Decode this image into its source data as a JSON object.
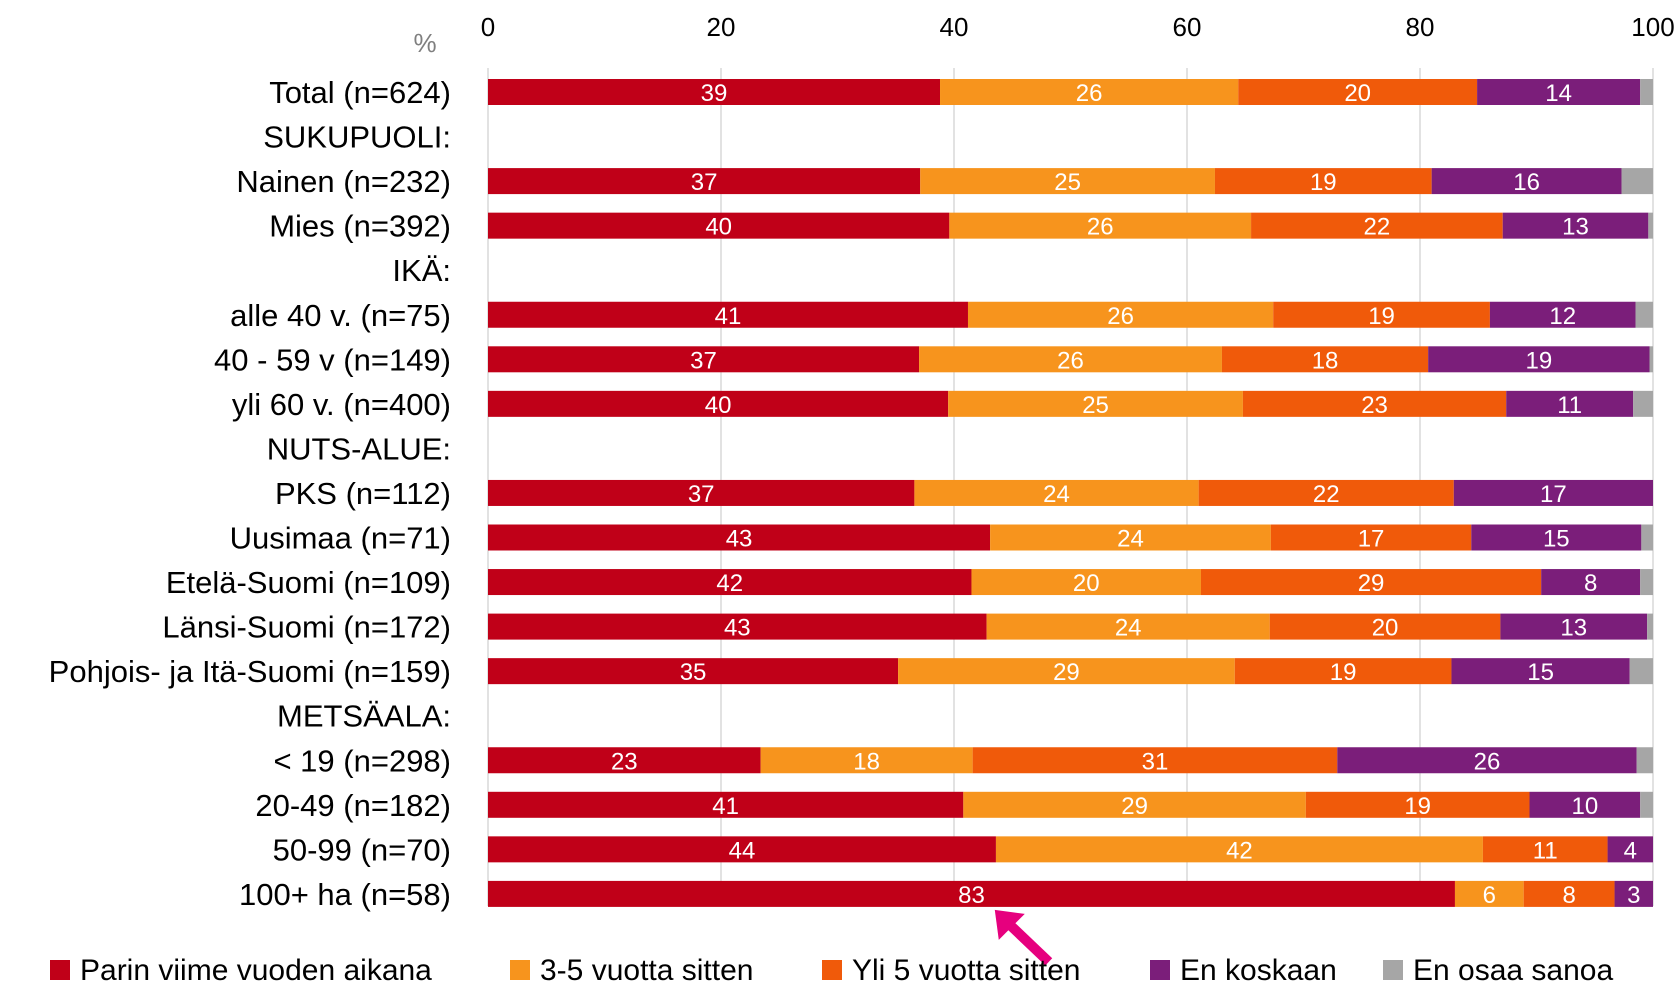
{
  "chart_data": {
    "type": "bar",
    "orientation": "horizontal",
    "stacked": true,
    "unit_label": "%",
    "xlim": [
      0,
      100
    ],
    "xticks": [
      "0",
      "20",
      "40",
      "60",
      "80",
      "100"
    ],
    "grid": true,
    "legend_position": "bottom",
    "categories": [
      "Total (n=624)",
      "SUKUPUOLI:",
      "Nainen (n=232)",
      "Mies (n=392)",
      "IKÄ:",
      "alle 40 v. (n=75)",
      "40 - 59 v (n=149)",
      "yli 60 v. (n=400)",
      "NUTS-ALUE:",
      "PKS (n=112)",
      "Uusimaa (n=71)",
      "Etelä-Suomi (n=109)",
      "Länsi-Suomi (n=172)",
      "Pohjois- ja Itä-Suomi (n=159)",
      "METSÄALA:",
      "< 19 (n=298)",
      "20-49 (n=182)",
      "50-99 (n=70)",
      "100+ ha (n=58)"
    ],
    "series": [
      {
        "name": "Parin viime vuoden aikana",
        "color": "#c00018",
        "values": [
          38.8,
          null,
          37.1,
          39.6,
          null,
          41.2,
          37.0,
          39.5,
          null,
          36.6,
          43.1,
          41.5,
          42.8,
          35.2,
          null,
          23.4,
          40.8,
          43.6,
          83.0
        ],
        "labels": [
          "39",
          "",
          "37",
          "40",
          "",
          "41",
          "37",
          "40",
          "",
          "37",
          "43",
          "42",
          "43",
          "35",
          "",
          "23",
          "41",
          "44",
          "83"
        ]
      },
      {
        "name": "3-5 vuotta sitten",
        "color": "#f7941d",
        "values": [
          25.6,
          null,
          25.3,
          25.9,
          null,
          26.2,
          26.0,
          25.3,
          null,
          24.4,
          24.1,
          19.7,
          24.3,
          28.9,
          null,
          18.2,
          29.4,
          41.8,
          5.9
        ],
        "labels": [
          "26",
          "",
          "25",
          "26",
          "",
          "26",
          "26",
          "25",
          "",
          "24",
          "24",
          "20",
          "24",
          "29",
          "",
          "18",
          "29",
          "42",
          "6"
        ]
      },
      {
        "name": "Yli 5 vuotta sitten",
        "color": "#f05a0a",
        "values": [
          20.5,
          null,
          18.6,
          21.6,
          null,
          18.6,
          17.7,
          22.6,
          null,
          21.9,
          17.2,
          29.2,
          19.8,
          18.6,
          null,
          31.3,
          19.2,
          10.7,
          7.8
        ],
        "labels": [
          "20",
          "",
          "19",
          "22",
          "",
          "19",
          "18",
          "23",
          "",
          "22",
          "17",
          "29",
          "20",
          "19",
          "",
          "31",
          "19",
          "11",
          "8"
        ]
      },
      {
        "name": "En koskaan",
        "color": "#7b1e7a",
        "values": [
          14.0,
          null,
          16.3,
          12.5,
          null,
          12.5,
          19.0,
          10.9,
          null,
          17.1,
          14.6,
          8.5,
          12.6,
          15.3,
          null,
          25.7,
          9.5,
          3.9,
          3.3
        ],
        "labels": [
          "14",
          "",
          "16",
          "13",
          "",
          "12",
          "19",
          "11",
          "",
          "17",
          "15",
          "8",
          "13",
          "15",
          "",
          "26",
          "10",
          "4",
          "3"
        ]
      },
      {
        "name": "En osaa sanoa",
        "color": "#a6a6a6",
        "values": [
          1.1,
          null,
          2.7,
          0.4,
          null,
          1.5,
          0.3,
          1.7,
          null,
          0.0,
          1.0,
          1.1,
          0.5,
          2.0,
          null,
          1.4,
          1.1,
          0.0,
          0.0
        ],
        "labels": [
          "",
          "",
          "",
          "",
          "",
          "",
          "",
          "",
          "",
          "",
          "",
          "",
          "",
          "",
          "",
          "",
          "",
          "",
          ""
        ]
      }
    ],
    "annotations": [
      {
        "type": "arrow",
        "color": "#e6007e",
        "points_to": {
          "category": "100+ ha (n=58)",
          "x": 43.5
        }
      }
    ]
  }
}
